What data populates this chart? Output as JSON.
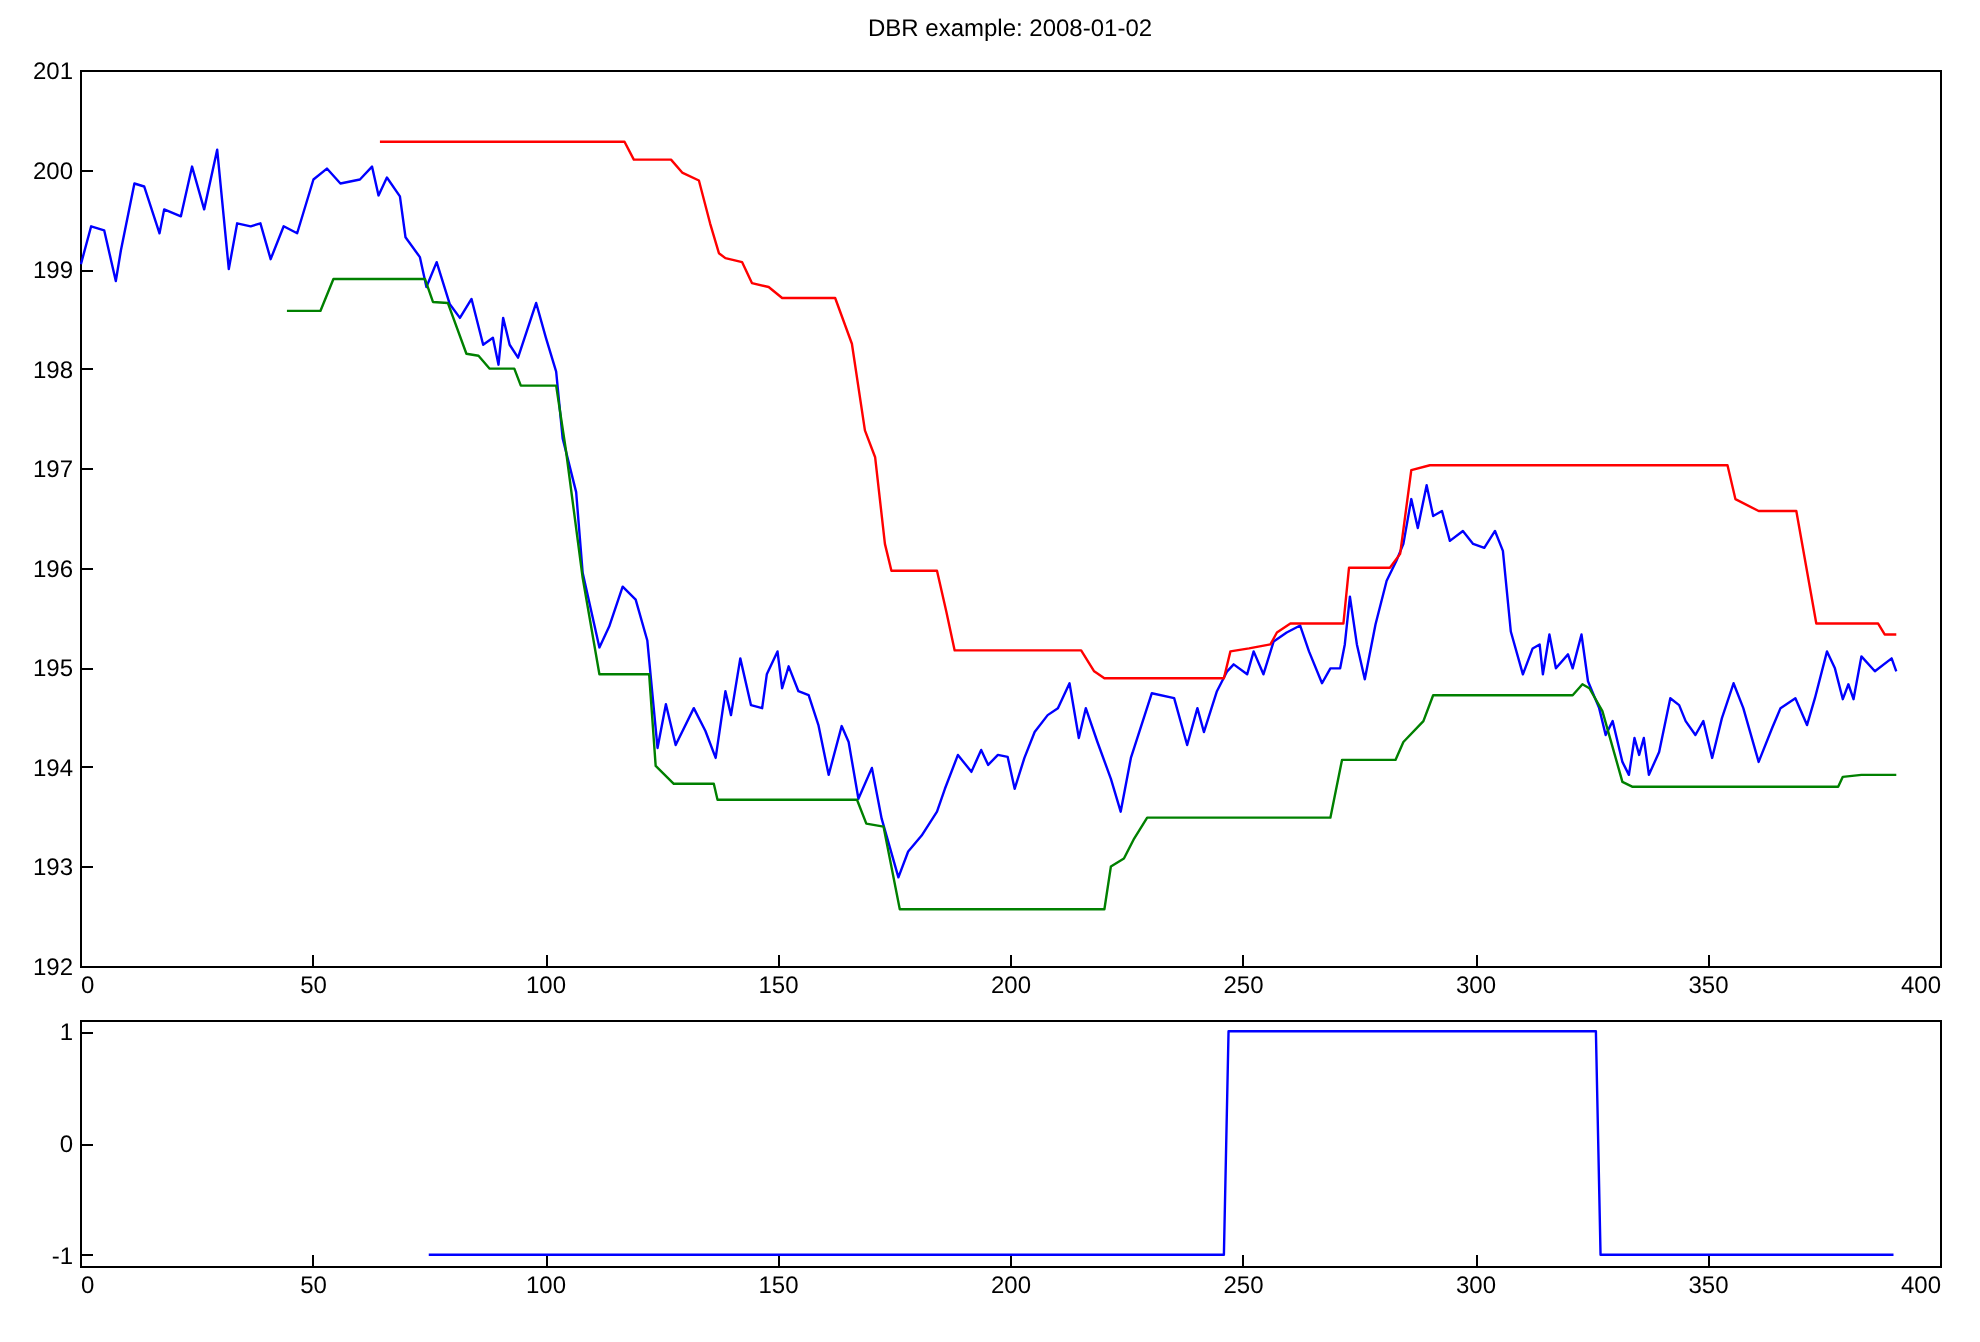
{
  "chart_data": [
    {
      "type": "line",
      "title": "DBR example: 2008-01-02",
      "xlim": [
        0,
        400
      ],
      "xticks": [
        0,
        50,
        100,
        150,
        200,
        250,
        300,
        350,
        400
      ],
      "ylim": [
        192,
        201
      ],
      "yticks": [
        192,
        193,
        194,
        195,
        196,
        197,
        198,
        199,
        200,
        201
      ],
      "series": [
        {
          "color": "#0000ff",
          "x": [
            0.2,
            2.4,
            5.2,
            7.7,
            8.8,
            11.7,
            13.8,
            17.1,
            18.1,
            21.7,
            24.1,
            26.7,
            29.5,
            32,
            33.8,
            36.7,
            38.8,
            41,
            43.8,
            46.7,
            50.2,
            53.1,
            56,
            60.2,
            62.8,
            64.2,
            66,
            68.8,
            70,
            73.1,
            74.5,
            76.7,
            79.5,
            81.7,
            84.2,
            86.7,
            88.8,
            90,
            91,
            92.4,
            94.2,
            98.1,
            100.2,
            102.4,
            103.8,
            106.7,
            108.1,
            111.7,
            113.8,
            116.7,
            119.5,
            122,
            124.2,
            126,
            128.1,
            132,
            134.5,
            136.7,
            138.8,
            140,
            142,
            144.3,
            146.7,
            147.7,
            150,
            151,
            152.4,
            154.5,
            156.7,
            158.8,
            161,
            163.8,
            165.3,
            167.4,
            170.3,
            172.4,
            176,
            178.1,
            181,
            184.3,
            186,
            188.8,
            191.7,
            193.8,
            195.3,
            197.4,
            199.5,
            201,
            203.1,
            205.3,
            208.1,
            210.3,
            212.8,
            214.8,
            216.3,
            218.8,
            221.7,
            223.8,
            226,
            230.5,
            235.3,
            238.1,
            240.3,
            241.7,
            244.5,
            246.7,
            248.1,
            251,
            252.4,
            254.5,
            256.7,
            259.5,
            262.4,
            264.3,
            267.1,
            268.9,
            271,
            272,
            273.1,
            274.6,
            276.3,
            278.6,
            281,
            283.1,
            284.6,
            286.3,
            287.7,
            289.6,
            291,
            292.9,
            294.6,
            297.4,
            299.6,
            302,
            304.3,
            306,
            307.7,
            310.3,
            312.4,
            313.9,
            314.6,
            316,
            317.4,
            320,
            321,
            322.9,
            324.3,
            326.7,
            328.1,
            329.6,
            331.7,
            333.1,
            334.3,
            335.3,
            336.3,
            337.4,
            339.6,
            342,
            343.9,
            345.3,
            347.4,
            349.1,
            351,
            353.1,
            355.6,
            357.7,
            361,
            363.9,
            365.7,
            368.9,
            371.4,
            373.1,
            375.7,
            377.4,
            379.1,
            380.3,
            381.4,
            383.1,
            386,
            389.6,
            390.6
          ],
          "values": [
            199.05,
            199.43,
            199.39,
            198.88,
            199.19,
            199.86,
            199.83,
            199.36,
            199.6,
            199.53,
            200.03,
            199.6,
            200.2,
            199.0,
            199.46,
            199.43,
            199.46,
            199.1,
            199.43,
            199.36,
            199.9,
            200.01,
            199.86,
            199.9,
            200.03,
            199.74,
            199.92,
            199.73,
            199.32,
            199.12,
            198.82,
            199.07,
            198.65,
            198.51,
            198.7,
            198.24,
            198.31,
            198.04,
            198.51,
            198.24,
            198.11,
            198.66,
            198.31,
            197.97,
            197.3,
            196.76,
            195.95,
            195.2,
            195.41,
            195.81,
            195.68,
            195.27,
            194.19,
            194.63,
            194.22,
            194.59,
            194.36,
            194.09,
            194.76,
            194.52,
            195.09,
            194.62,
            194.59,
            194.93,
            195.16,
            194.79,
            195.01,
            194.76,
            194.72,
            194.42,
            193.92,
            194.41,
            194.25,
            193.68,
            193.99,
            193.48,
            192.89,
            193.15,
            193.31,
            193.55,
            193.78,
            194.12,
            193.95,
            194.17,
            194.02,
            194.12,
            194.1,
            193.78,
            194.09,
            194.35,
            194.52,
            194.59,
            194.84,
            194.29,
            194.59,
            194.25,
            193.88,
            193.55,
            194.09,
            194.74,
            194.69,
            194.22,
            194.59,
            194.35,
            194.76,
            194.96,
            195.03,
            194.93,
            195.16,
            194.93,
            195.26,
            195.35,
            195.42,
            195.16,
            194.84,
            194.99,
            194.99,
            195.23,
            195.71,
            195.23,
            194.88,
            195.43,
            195.87,
            196.07,
            196.24,
            196.69,
            196.4,
            196.83,
            196.52,
            196.57,
            196.27,
            196.37,
            196.24,
            196.2,
            196.37,
            196.17,
            195.36,
            194.93,
            195.19,
            195.23,
            194.93,
            195.33,
            194.99,
            195.13,
            194.99,
            195.33,
            194.86,
            194.59,
            194.32,
            194.46,
            194.05,
            193.92,
            194.29,
            194.12,
            194.29,
            193.92,
            194.15,
            194.69,
            194.62,
            194.46,
            194.32,
            194.46,
            194.09,
            194.49,
            194.84,
            194.59,
            194.05,
            194.39,
            194.59,
            194.69,
            194.42,
            194.69,
            195.16,
            194.99,
            194.68,
            194.83,
            194.68,
            195.11,
            194.96,
            195.09,
            194.96
          ]
        },
        {
          "color": "#ff0000",
          "x": [
            64.5,
            117.1,
            119.1,
            127.1,
            129.5,
            133.1,
            135.5,
            137.4,
            138.8,
            142.4,
            144.5,
            148.1,
            151,
            162.4,
            166,
            168.8,
            171,
            173.1,
            174.5,
            184.3,
            186.3,
            188.1,
            215.3,
            218.1,
            220.3,
            246,
            247.4,
            251.4,
            256,
            257.4,
            260.3,
            271.7,
            272.9,
            281.7,
            283.9,
            286.3,
            290.3,
            354.3,
            356,
            361,
            369.1,
            373.4,
            386.7,
            388.1,
            390.6
          ],
          "values": [
            200.28,
            200.28,
            200.1,
            200.1,
            199.97,
            199.89,
            199.46,
            199.16,
            199.11,
            199.07,
            198.86,
            198.82,
            198.71,
            198.71,
            198.25,
            197.38,
            197.11,
            196.24,
            195.97,
            195.97,
            195.56,
            195.17,
            195.17,
            194.96,
            194.89,
            194.89,
            195.16,
            195.19,
            195.23,
            195.35,
            195.44,
            195.44,
            196.0,
            196.0,
            196.14,
            196.98,
            197.03,
            197.03,
            196.69,
            196.57,
            196.57,
            195.44,
            195.44,
            195.33,
            195.33
          ]
        },
        {
          "color": "#008000",
          "x": [
            44.5,
            51.7,
            54.5,
            74.2,
            75.9,
            79.1,
            83.1,
            85.7,
            88.1,
            93.4,
            94.8,
            102.4,
            104.5,
            108.1,
            111.7,
            122.4,
            123.8,
            127.7,
            136.3,
            137.1,
            167.1,
            169.1,
            172.8,
            176.3,
            220.3,
            221.7,
            224.5,
            226.7,
            229.5,
            268.9,
            271.4,
            282.9,
            284.6,
            288.9,
            291,
            321,
            323.1,
            324.6,
            327.4,
            331.7,
            333.9,
            378.1,
            379.1,
            383.1,
            390.6
          ],
          "values": [
            198.58,
            198.58,
            198.9,
            198.9,
            198.67,
            198.66,
            198.15,
            198.13,
            198.0,
            198.0,
            197.83,
            197.83,
            197.18,
            195.9,
            194.93,
            194.93,
            194.01,
            193.83,
            193.83,
            193.67,
            193.67,
            193.43,
            193.4,
            192.57,
            192.57,
            193.0,
            193.08,
            193.28,
            193.49,
            193.49,
            194.07,
            194.07,
            194.25,
            194.46,
            194.72,
            194.72,
            194.83,
            194.79,
            194.56,
            193.85,
            193.8,
            193.8,
            193.9,
            193.92,
            193.92
          ]
        }
      ]
    },
    {
      "type": "line",
      "xlim": [
        0,
        400
      ],
      "xticks": [
        0,
        50,
        100,
        150,
        200,
        250,
        300,
        350,
        400
      ],
      "ylim": [
        -1.1,
        1.1
      ],
      "yticks": [
        -1,
        0,
        1
      ],
      "series": [
        {
          "color": "#0000ff",
          "x": [
            75,
            246,
            247,
            326,
            327,
            390
          ],
          "values": [
            -1,
            -1,
            1,
            1,
            -1,
            -1
          ]
        }
      ]
    }
  ]
}
